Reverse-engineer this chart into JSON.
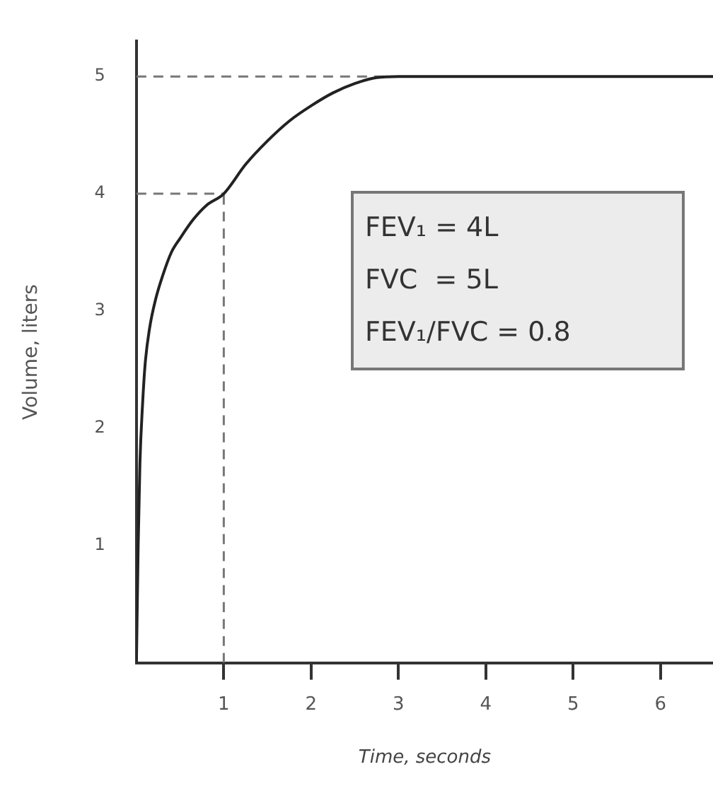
{
  "chart_data": {
    "type": "line",
    "xlabel": "Time, seconds",
    "ylabel": "Volume, liters",
    "xlim": [
      0,
      6.6
    ],
    "xticks": [
      1,
      2,
      3,
      4,
      5,
      6
    ],
    "ylim": [
      0,
      5.3
    ],
    "yticks": [
      1,
      2,
      3,
      4,
      5
    ],
    "grid": false,
    "legend": false,
    "marker": "none",
    "series": [
      {
        "color": "#222222",
        "line_style": "solid",
        "x": [
          0,
          0.02,
          0.04,
          0.07,
          0.1,
          0.15,
          0.22,
          0.3,
          0.4,
          0.5,
          0.65,
          0.8,
          1,
          1.25,
          1.5,
          1.75,
          2,
          2.25,
          2.5,
          2.75,
          3,
          3.5,
          4,
          5,
          6,
          6.6
        ],
        "values": [
          0,
          1,
          1.7,
          2.2,
          2.55,
          2.85,
          3.1,
          3.3,
          3.5,
          3.62,
          3.78,
          3.9,
          4,
          4.25,
          4.45,
          4.62,
          4.75,
          4.86,
          4.94,
          4.99,
          5,
          5,
          5,
          5,
          5,
          5
        ]
      },
      {
        "color": "#777777",
        "line_style": "dashed",
        "x": [
          0,
          1
        ],
        "values": [
          4,
          4
        ]
      },
      {
        "color": "#777777",
        "line_style": "dashed",
        "x": [
          1,
          1
        ],
        "values": [
          0,
          4
        ]
      },
      {
        "color": "#777777",
        "line_style": "dashed",
        "x": [
          0,
          2.9
        ],
        "values": [
          5,
          5
        ]
      }
    ],
    "annotations": [
      "FEV₁ = 4L",
      "FVC  = 5L",
      "FEV₁/FVC = 0.8"
    ]
  }
}
